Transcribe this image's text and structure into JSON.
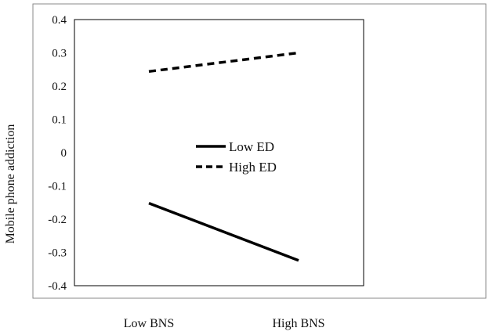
{
  "chart_data": {
    "type": "line",
    "categories": [
      "Low BNS",
      "High BNS"
    ],
    "series": [
      {
        "name": "Low ED",
        "values": [
          -0.152,
          -0.324
        ],
        "style": "solid",
        "color": "#000000"
      },
      {
        "name": "High ED",
        "values": [
          0.244,
          0.3
        ],
        "style": "dashed",
        "color": "#000000"
      }
    ],
    "ylabel": "Mobile phone addiction",
    "xlabel": "",
    "ylim": [
      -0.4,
      0.4
    ],
    "yticks": [
      "0.4",
      "0.3",
      "0.2",
      "0.1",
      "0",
      "-0.1",
      "-0.2",
      "-0.3",
      "-0.4"
    ],
    "ytick_values": [
      0.4,
      0.3,
      0.2,
      0.1,
      0,
      -0.1,
      -0.2,
      -0.3,
      -0.4
    ],
    "grid": false,
    "legend": "center"
  }
}
